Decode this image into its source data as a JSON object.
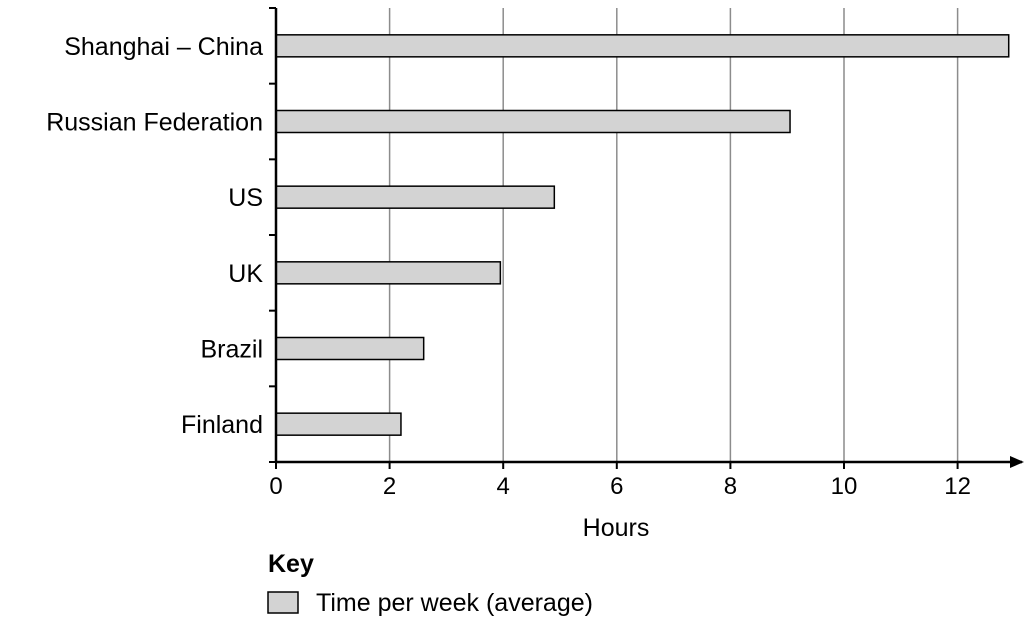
{
  "chart_data": {
    "type": "bar",
    "orientation": "horizontal",
    "categories": [
      "Shanghai – China",
      "Russian Federation",
      "US",
      "UK",
      "Brazil",
      "Finland"
    ],
    "values": [
      12.9,
      9.05,
      4.9,
      3.95,
      2.6,
      2.2
    ],
    "xlabel": "Hours",
    "x_ticks": [
      "0",
      "2",
      "4",
      "6",
      "8",
      "10",
      "12"
    ],
    "xlim": [
      0,
      13
    ],
    "grid": "vertical",
    "bar_color": "#d3d3d3",
    "legend": {
      "title": "Key",
      "entries": [
        {
          "label": "Time per week (average)",
          "color": "#d3d3d3"
        }
      ]
    }
  }
}
